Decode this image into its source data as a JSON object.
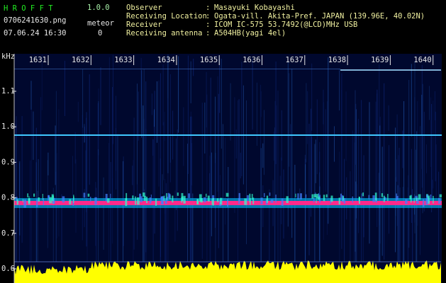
{
  "header": {
    "app": "H R O F F T",
    "version": "1.0.0",
    "file": "0706241630.png",
    "meteor_label": "meteor",
    "datetime": "07.06.24 16:30",
    "meteor_count": "0",
    "fields": [
      {
        "label": "Observer",
        "value": "Masayuki Kobayashi"
      },
      {
        "label": "Receiving Location",
        "value": "Ogata-vill. Akita-Pref. JAPAN (139.96E, 40.02N)"
      },
      {
        "label": "Receiver",
        "value": "ICOM IC-575 53.7492(@LCD)MHz USB"
      },
      {
        "label": "Receiving antenna",
        "value": "A504HB(yagi 4el)"
      }
    ],
    "separator": ":"
  },
  "axis": {
    "unit": "kHz",
    "y_labels": [
      "1.1",
      "1.0",
      "0.9",
      "0.8",
      "0.7",
      "0.6"
    ],
    "minute_labels": [
      "1631",
      "1632",
      "1633",
      "1634",
      "1635",
      "1636",
      "1637",
      "1638",
      "1639",
      "1640"
    ]
  }
}
